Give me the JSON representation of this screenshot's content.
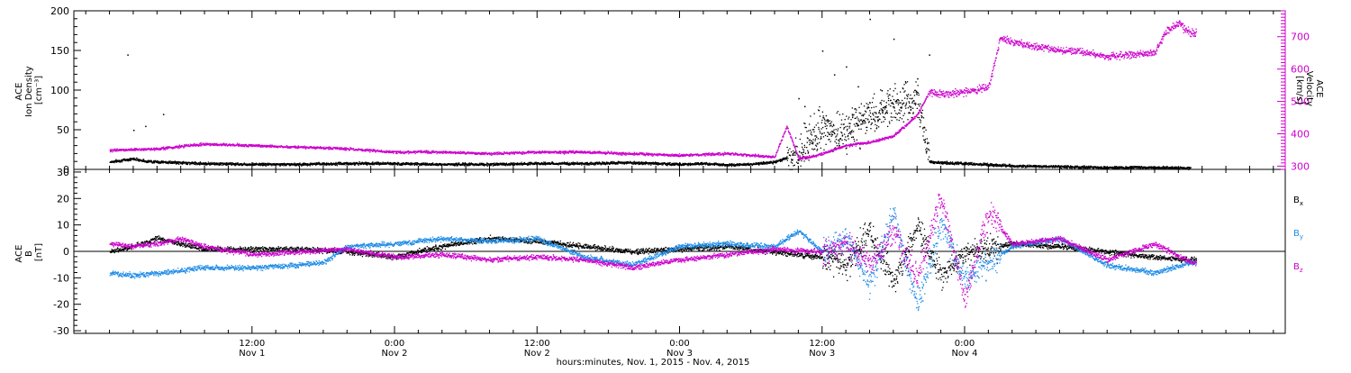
{
  "chart_data": [
    {
      "type": "scatter",
      "panel": "density-velocity",
      "y_left": {
        "label_lines": [
          "ACE",
          "Ion Density",
          "[cm⁻³]"
        ],
        "range": [
          0,
          200
        ],
        "ticks": [
          0,
          50,
          100,
          150,
          200
        ],
        "tick_labels": [
          "0",
          "50",
          "100",
          "150",
          "200"
        ]
      },
      "y_right": {
        "label_lines": [
          "ACE",
          "Velocity",
          "[km/s]"
        ],
        "range": [
          290,
          780
        ],
        "ticks": [
          300,
          400,
          500,
          600,
          700
        ],
        "tick_labels": [
          "300",
          "400",
          "500",
          "600",
          "700"
        ],
        "color": "#cc00cc"
      },
      "series": [
        {
          "axis": "left",
          "color": "#000000",
          "x_hours": [
            0,
            1,
            2,
            3,
            4,
            6,
            8,
            12,
            16,
            20,
            24,
            28,
            32,
            36,
            40,
            44,
            48,
            50,
            52,
            54,
            56,
            58,
            59,
            60,
            61,
            62,
            63,
            64,
            65,
            66,
            67,
            68,
            69,
            70,
            72,
            76,
            80,
            84,
            88,
            92,
            96
          ],
          "values": [
            10,
            12,
            14,
            11,
            10,
            9,
            8,
            7,
            7,
            8,
            8,
            7,
            7,
            8,
            8,
            9,
            7,
            8,
            6,
            7,
            10,
            20,
            40,
            55,
            45,
            50,
            60,
            70,
            75,
            80,
            85,
            90,
            10,
            9,
            8,
            5,
            4,
            3,
            3,
            2,
            2
          ],
          "spike_x_hours": [
            1.5,
            2,
            3,
            4.5,
            58,
            60,
            61,
            62,
            63,
            64,
            65,
            66,
            67,
            68,
            69,
            58.5,
            62.5
          ],
          "spike_values": [
            145,
            50,
            55,
            70,
            90,
            150,
            120,
            130,
            105,
            190,
            100,
            165,
            110,
            115,
            145,
            80,
            70
          ]
        },
        {
          "axis": "right",
          "color": "#cc00cc",
          "x_hours": [
            0,
            4,
            8,
            12,
            16,
            20,
            24,
            28,
            32,
            36,
            40,
            44,
            48,
            52,
            56,
            57,
            58,
            59,
            60,
            62,
            64,
            66,
            68,
            69,
            70,
            72,
            74,
            75,
            76,
            78,
            80,
            82,
            84,
            86,
            88,
            89,
            90,
            91
          ],
          "values": [
            350,
            355,
            370,
            365,
            360,
            355,
            345,
            345,
            340,
            345,
            345,
            340,
            335,
            340,
            330,
            425,
            325,
            330,
            340,
            365,
            375,
            395,
            460,
            530,
            525,
            530,
            545,
            700,
            685,
            670,
            660,
            655,
            640,
            645,
            650,
            720,
            740,
            715
          ]
        }
      ]
    },
    {
      "type": "scatter",
      "panel": "magnetic-field",
      "y_left": {
        "label_lines": [
          "ACE",
          "B",
          "[nT]"
        ],
        "range": [
          -31,
          31
        ],
        "ticks": [
          -30,
          -20,
          -10,
          0,
          10,
          20,
          30
        ],
        "tick_labels": [
          "-30",
          "-20",
          "-10",
          "0",
          "10",
          "20",
          "30"
        ]
      },
      "legend": {
        "position": "right",
        "entries": [
          {
            "label": "B",
            "sub": "x",
            "color": "#000000"
          },
          {
            "label": "B",
            "sub": "y",
            "color": "#1f8ce6"
          },
          {
            "label": "B",
            "sub": "z",
            "color": "#cc00cc"
          }
        ]
      },
      "series": [
        {
          "color": "#000000",
          "x_hours": [
            0,
            2,
            4,
            6,
            8,
            12,
            16,
            20,
            24,
            28,
            32,
            36,
            40,
            44,
            48,
            52,
            56,
            60,
            62,
            64,
            66,
            68,
            70,
            72,
            76,
            80,
            84,
            88,
            91
          ],
          "values": [
            0,
            2,
            5,
            3,
            1,
            1,
            1,
            0,
            -2,
            2,
            5,
            4,
            2,
            0,
            1,
            2,
            0,
            -2,
            -5,
            8,
            -12,
            10,
            -10,
            0,
            3,
            2,
            0,
            -2,
            -3
          ]
        },
        {
          "color": "#1f8ce6",
          "x_hours": [
            0,
            2,
            4,
            6,
            8,
            12,
            16,
            18,
            20,
            24,
            28,
            32,
            36,
            40,
            44,
            48,
            52,
            56,
            58,
            60,
            62,
            64,
            66,
            68,
            70,
            72,
            76,
            80,
            84,
            88,
            91
          ],
          "values": [
            -8,
            -9,
            -8,
            -7,
            -6,
            -6,
            -5,
            -4,
            2,
            3,
            5,
            4,
            5,
            -2,
            -5,
            2,
            3,
            2,
            8,
            0,
            5,
            -12,
            15,
            -20,
            10,
            -10,
            2,
            5,
            -5,
            -8,
            -4
          ]
        },
        {
          "color": "#cc00cc",
          "x_hours": [
            0,
            2,
            4,
            6,
            8,
            12,
            16,
            20,
            24,
            28,
            32,
            36,
            40,
            44,
            48,
            52,
            56,
            60,
            62,
            64,
            66,
            68,
            70,
            72,
            74,
            76,
            80,
            84,
            88,
            91
          ],
          "values": [
            3,
            2,
            3,
            5,
            2,
            -1,
            0,
            1,
            -2,
            -1,
            -3,
            -2,
            -3,
            -6,
            -3,
            -1,
            1,
            0,
            3,
            -5,
            8,
            -10,
            20,
            -18,
            15,
            3,
            5,
            -3,
            3,
            -4
          ]
        }
      ]
    }
  ],
  "x_axis": {
    "label": "hours:minutes, Nov.  1, 2015 - Nov.  4, 2015",
    "range_hours": [
      -3,
      99
    ],
    "ticks": [
      {
        "hour": 12,
        "time": "12:00",
        "date": "Nov 1"
      },
      {
        "hour": 24,
        "time": "0:00",
        "date": "Nov 2"
      },
      {
        "hour": 36,
        "time": "12:00",
        "date": "Nov 2"
      },
      {
        "hour": 48,
        "time": "0:00",
        "date": "Nov 3"
      },
      {
        "hour": 60,
        "time": "12:00",
        "date": "Nov 3"
      },
      {
        "hour": 72,
        "time": "0:00",
        "date": "Nov 4"
      }
    ]
  }
}
